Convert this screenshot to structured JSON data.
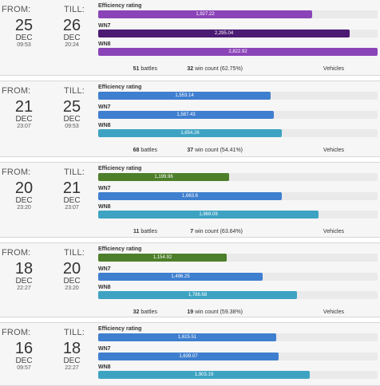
{
  "labels": {
    "from": "FROM:",
    "till": "TILL:",
    "efficiency": "Efficiency rating",
    "wn7": "WN7",
    "wn8": "WN8",
    "battles_suffix": "battles",
    "wins_suffix": "win count",
    "vehicles": "Vehicles"
  },
  "colors": {
    "purple": "#8b44b8",
    "dark_purple": "#4b1a73",
    "blue": "#3f7fcf",
    "cyan": "#3ea3c3",
    "green": "#4d7f2a"
  },
  "sessions": [
    {
      "from": {
        "day": "25",
        "month": "DEC",
        "time": "09:53"
      },
      "till": {
        "day": "26",
        "month": "DEC",
        "time": "20:24"
      },
      "efficiency": {
        "value": "1,927.22",
        "fraction": 0.766
      },
      "wn7": {
        "value": "2,295.04",
        "fraction": 0.9
      },
      "wn8": {
        "value": "2,822.92",
        "fraction": 1.0
      },
      "battles": "51",
      "wins": "32",
      "win_pct": "(62.75%)"
    },
    {
      "from": {
        "day": "21",
        "month": "DEC",
        "time": "23:07"
      },
      "till": {
        "day": "25",
        "month": "DEC",
        "time": "09:53"
      },
      "efficiency": {
        "value": "1,553.14",
        "fraction": 0.617
      },
      "wn7": {
        "value": "1,587.43",
        "fraction": 0.629
      },
      "wn8": {
        "value": "1,654.26",
        "fraction": 0.657
      },
      "battles": "68",
      "wins": "37",
      "win_pct": "(54.41%)"
    },
    {
      "from": {
        "day": "20",
        "month": "DEC",
        "time": "23:20"
      },
      "till": {
        "day": "21",
        "month": "DEC",
        "time": "23:07"
      },
      "efficiency": {
        "value": "1,199.96",
        "fraction": 0.469
      },
      "wn7": {
        "value": "1,663.6",
        "fraction": 0.657
      },
      "wn8": {
        "value": "1,969.09",
        "fraction": 0.789
      },
      "battles": "11",
      "wins": "7",
      "win_pct": "(63.64%)"
    },
    {
      "from": {
        "day": "18",
        "month": "DEC",
        "time": "22:27"
      },
      "till": {
        "day": "20",
        "month": "DEC",
        "time": "23:20"
      },
      "efficiency": {
        "value": "1,154.92",
        "fraction": 0.46
      },
      "wn7": {
        "value": "1,496.25",
        "fraction": 0.589
      },
      "wn8": {
        "value": "1,786.68",
        "fraction": 0.711
      },
      "battles": "32",
      "wins": "19",
      "win_pct": "(59.38%)"
    },
    {
      "from": {
        "day": "16",
        "month": "DEC",
        "time": "09:57"
      },
      "till": {
        "day": "18",
        "month": "DEC",
        "time": "22:27"
      },
      "efficiency": {
        "value": "1,615.51",
        "fraction": 0.637
      },
      "wn7": {
        "value": "1,639.07",
        "fraction": 0.646
      },
      "wn8": {
        "value": "1,903.19",
        "fraction": 0.757
      },
      "battles": "",
      "wins": "",
      "win_pct": ""
    }
  ]
}
